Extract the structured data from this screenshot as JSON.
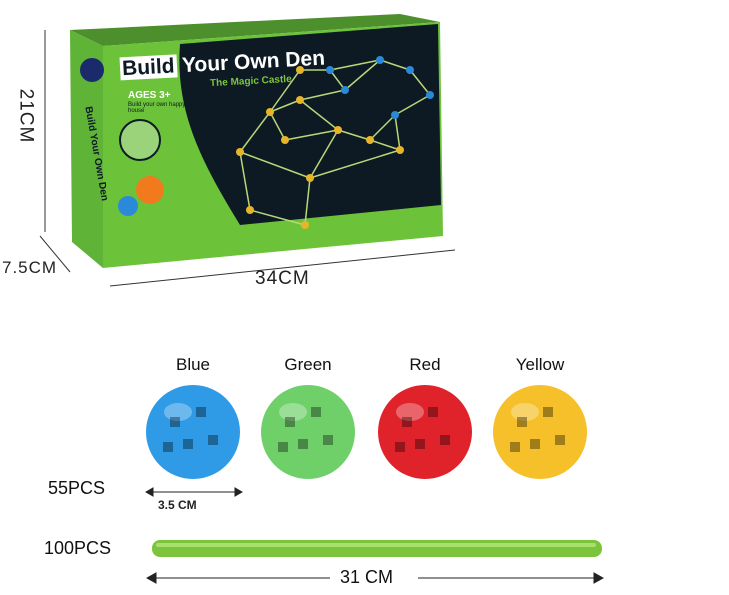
{
  "box": {
    "title_part1": "Build",
    "title_part2": "Your Own Den",
    "subtitle": "The Magic Castle",
    "ages": "AGES 3+",
    "tagline": "Build your own happy house",
    "side_text": "Build Your Own Den",
    "colors": {
      "green": "#6cc33a",
      "dark": "#0d1a24",
      "ball_yellow": "#e8b52a",
      "ball_blue": "#2a8ad8"
    }
  },
  "dimensions": {
    "height": "21CM",
    "depth": "7.5CM",
    "width": "34CM"
  },
  "balls": [
    {
      "label": "Blue",
      "color": "#2f9be6"
    },
    {
      "label": "Green",
      "color": "#6fd06a"
    },
    {
      "label": "Red",
      "color": "#e0232b"
    },
    {
      "label": "Yellow",
      "color": "#f5c02a"
    }
  ],
  "ball_count": "55PCS",
  "ball_size": "3.5 CM",
  "rod_count": "100PCS",
  "rod_length": "31 CM",
  "rod_color": "#7cc43c"
}
